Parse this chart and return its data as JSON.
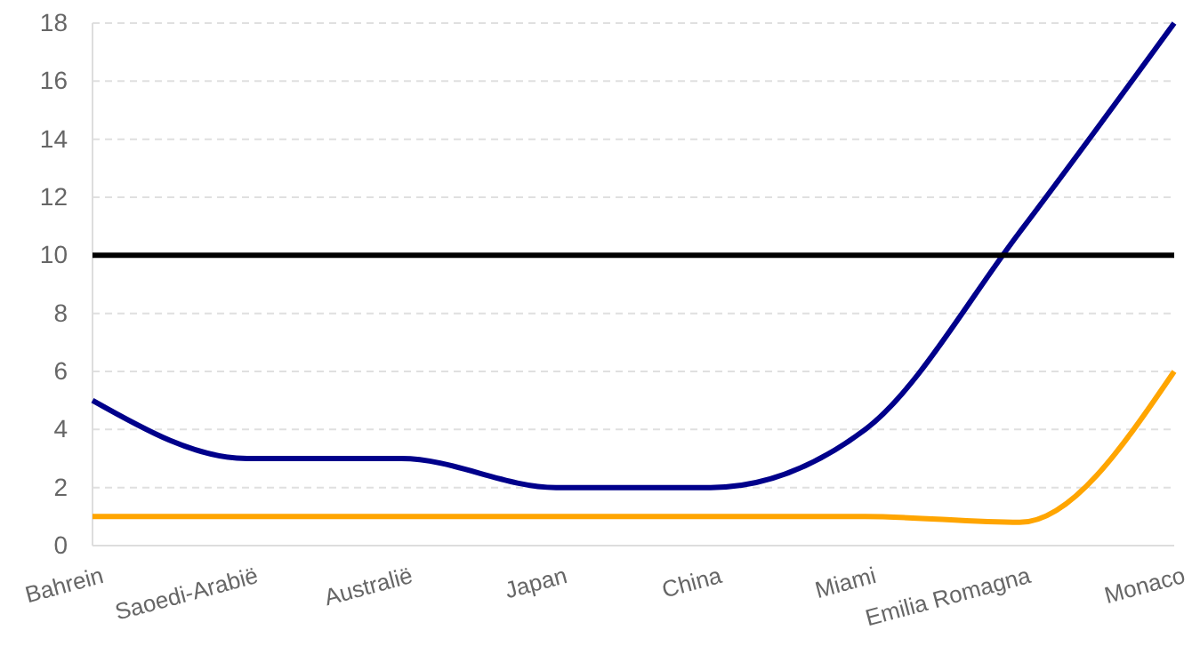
{
  "chart_data": {
    "type": "line",
    "categories": [
      "Bahrein",
      "Saoedi-Arabië",
      "Australië",
      "Japan",
      "China",
      "Miami",
      "Emilia Romagna",
      "Monaco"
    ],
    "series": [
      {
        "color": "#00008b",
        "values": [
          5,
          3,
          3,
          2,
          2,
          4,
          10.8,
          18
        ]
      },
      {
        "color": "#ffa500",
        "values": [
          1,
          1,
          1,
          1,
          1,
          1,
          0.8,
          6
        ]
      }
    ],
    "ylim": [
      0,
      18
    ],
    "yticks": [
      0,
      2,
      4,
      6,
      8,
      10,
      12,
      14,
      16,
      18
    ],
    "grid": "y",
    "marker": "none",
    "line_style": "solid",
    "ref_lines": [
      {
        "axis": "y",
        "value": 10,
        "color": "#000000"
      }
    ]
  }
}
